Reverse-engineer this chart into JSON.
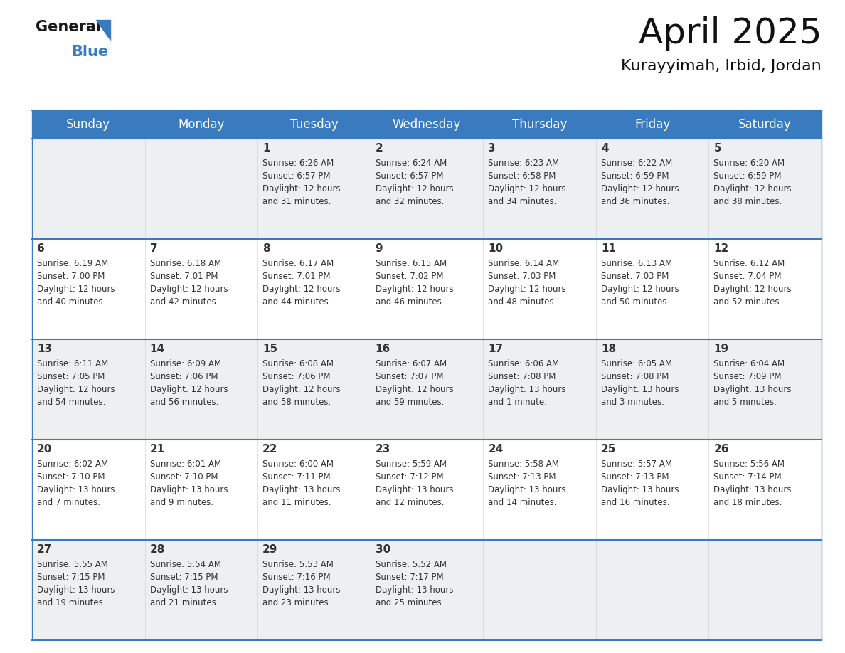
{
  "title": "April 2025",
  "subtitle": "Kurayyimah, Irbid, Jordan",
  "header_bg": "#3a7bbf",
  "header_text": "#ffffff",
  "row_bg_odd": "#eeeff1",
  "row_bg_even": "#ffffff",
  "border_color": "#3a7bbf",
  "text_color": "#333333",
  "days_of_week": [
    "Sunday",
    "Monday",
    "Tuesday",
    "Wednesday",
    "Thursday",
    "Friday",
    "Saturday"
  ],
  "weeks": [
    [
      {
        "day": "",
        "info": ""
      },
      {
        "day": "",
        "info": ""
      },
      {
        "day": "1",
        "info": "Sunrise: 6:26 AM\nSunset: 6:57 PM\nDaylight: 12 hours\nand 31 minutes."
      },
      {
        "day": "2",
        "info": "Sunrise: 6:24 AM\nSunset: 6:57 PM\nDaylight: 12 hours\nand 32 minutes."
      },
      {
        "day": "3",
        "info": "Sunrise: 6:23 AM\nSunset: 6:58 PM\nDaylight: 12 hours\nand 34 minutes."
      },
      {
        "day": "4",
        "info": "Sunrise: 6:22 AM\nSunset: 6:59 PM\nDaylight: 12 hours\nand 36 minutes."
      },
      {
        "day": "5",
        "info": "Sunrise: 6:20 AM\nSunset: 6:59 PM\nDaylight: 12 hours\nand 38 minutes."
      }
    ],
    [
      {
        "day": "6",
        "info": "Sunrise: 6:19 AM\nSunset: 7:00 PM\nDaylight: 12 hours\nand 40 minutes."
      },
      {
        "day": "7",
        "info": "Sunrise: 6:18 AM\nSunset: 7:01 PM\nDaylight: 12 hours\nand 42 minutes."
      },
      {
        "day": "8",
        "info": "Sunrise: 6:17 AM\nSunset: 7:01 PM\nDaylight: 12 hours\nand 44 minutes."
      },
      {
        "day": "9",
        "info": "Sunrise: 6:15 AM\nSunset: 7:02 PM\nDaylight: 12 hours\nand 46 minutes."
      },
      {
        "day": "10",
        "info": "Sunrise: 6:14 AM\nSunset: 7:03 PM\nDaylight: 12 hours\nand 48 minutes."
      },
      {
        "day": "11",
        "info": "Sunrise: 6:13 AM\nSunset: 7:03 PM\nDaylight: 12 hours\nand 50 minutes."
      },
      {
        "day": "12",
        "info": "Sunrise: 6:12 AM\nSunset: 7:04 PM\nDaylight: 12 hours\nand 52 minutes."
      }
    ],
    [
      {
        "day": "13",
        "info": "Sunrise: 6:11 AM\nSunset: 7:05 PM\nDaylight: 12 hours\nand 54 minutes."
      },
      {
        "day": "14",
        "info": "Sunrise: 6:09 AM\nSunset: 7:06 PM\nDaylight: 12 hours\nand 56 minutes."
      },
      {
        "day": "15",
        "info": "Sunrise: 6:08 AM\nSunset: 7:06 PM\nDaylight: 12 hours\nand 58 minutes."
      },
      {
        "day": "16",
        "info": "Sunrise: 6:07 AM\nSunset: 7:07 PM\nDaylight: 12 hours\nand 59 minutes."
      },
      {
        "day": "17",
        "info": "Sunrise: 6:06 AM\nSunset: 7:08 PM\nDaylight: 13 hours\nand 1 minute."
      },
      {
        "day": "18",
        "info": "Sunrise: 6:05 AM\nSunset: 7:08 PM\nDaylight: 13 hours\nand 3 minutes."
      },
      {
        "day": "19",
        "info": "Sunrise: 6:04 AM\nSunset: 7:09 PM\nDaylight: 13 hours\nand 5 minutes."
      }
    ],
    [
      {
        "day": "20",
        "info": "Sunrise: 6:02 AM\nSunset: 7:10 PM\nDaylight: 13 hours\nand 7 minutes."
      },
      {
        "day": "21",
        "info": "Sunrise: 6:01 AM\nSunset: 7:10 PM\nDaylight: 13 hours\nand 9 minutes."
      },
      {
        "day": "22",
        "info": "Sunrise: 6:00 AM\nSunset: 7:11 PM\nDaylight: 13 hours\nand 11 minutes."
      },
      {
        "day": "23",
        "info": "Sunrise: 5:59 AM\nSunset: 7:12 PM\nDaylight: 13 hours\nand 12 minutes."
      },
      {
        "day": "24",
        "info": "Sunrise: 5:58 AM\nSunset: 7:13 PM\nDaylight: 13 hours\nand 14 minutes."
      },
      {
        "day": "25",
        "info": "Sunrise: 5:57 AM\nSunset: 7:13 PM\nDaylight: 13 hours\nand 16 minutes."
      },
      {
        "day": "26",
        "info": "Sunrise: 5:56 AM\nSunset: 7:14 PM\nDaylight: 13 hours\nand 18 minutes."
      }
    ],
    [
      {
        "day": "27",
        "info": "Sunrise: 5:55 AM\nSunset: 7:15 PM\nDaylight: 13 hours\nand 19 minutes."
      },
      {
        "day": "28",
        "info": "Sunrise: 5:54 AM\nSunset: 7:15 PM\nDaylight: 13 hours\nand 21 minutes."
      },
      {
        "day": "29",
        "info": "Sunrise: 5:53 AM\nSunset: 7:16 PM\nDaylight: 13 hours\nand 23 minutes."
      },
      {
        "day": "30",
        "info": "Sunrise: 5:52 AM\nSunset: 7:17 PM\nDaylight: 13 hours\nand 25 minutes."
      },
      {
        "day": "",
        "info": ""
      },
      {
        "day": "",
        "info": ""
      },
      {
        "day": "",
        "info": ""
      }
    ]
  ],
  "logo_text1": "General",
  "logo_text2": "Blue",
  "logo_color1": "#1a1a1a",
  "logo_color2": "#3a7bbf",
  "logo_triangle_color": "#3a7bbf",
  "title_fontsize": 36,
  "subtitle_fontsize": 16,
  "header_fontsize": 12,
  "day_num_fontsize": 11,
  "info_fontsize": 8.5
}
